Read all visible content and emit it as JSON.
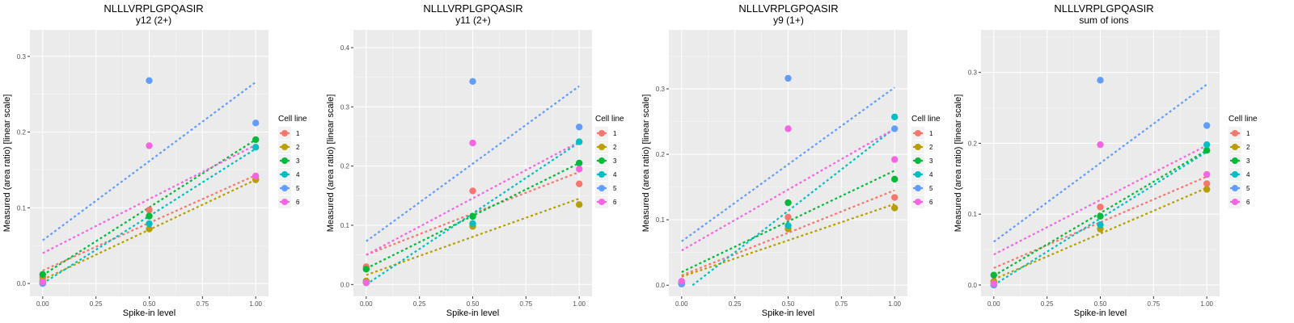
{
  "chart_data": [
    {
      "type": "scatter",
      "title": "NLLLVRPLGPQASIR",
      "subtitle": "y12 (2+)",
      "xlabel": "Spike-in level",
      "ylabel": "Measured (area ratio) [linear scale]",
      "xlim": [
        -0.06,
        1.06
      ],
      "ylim": [
        -0.017,
        0.335
      ],
      "xticks": [
        0.0,
        0.25,
        0.5,
        0.75,
        1.0
      ],
      "xtick_labels": [
        "0.00",
        "0.25",
        "0.50",
        "0.75",
        "1.00"
      ],
      "yticks": [
        0.0,
        0.1,
        0.2,
        0.3
      ],
      "ytick_labels": [
        "0.0",
        "0.1",
        "0.2",
        "0.3"
      ],
      "grid": true,
      "legend": {
        "title": "Cell line",
        "placement": "right"
      },
      "series": [
        {
          "name": "1",
          "x": [
            0,
            0.5,
            1
          ],
          "y": [
            0.008,
            0.097,
            0.138
          ],
          "fit": [
            0.017,
            0.143
          ]
        },
        {
          "name": "2",
          "x": [
            0,
            0.5,
            1
          ],
          "y": [
            0.004,
            0.072,
            0.137
          ],
          "fit": [
            0.005,
            0.137
          ]
        },
        {
          "name": "3",
          "x": [
            0,
            0.5,
            1
          ],
          "y": [
            0.012,
            0.089,
            0.19
          ],
          "fit": [
            0.011,
            0.19
          ]
        },
        {
          "name": "4",
          "x": [
            0,
            0.5,
            1
          ],
          "y": [
            0.0,
            0.079,
            0.18
          ],
          "fit": [
            0.0,
            0.178
          ]
        },
        {
          "name": "5",
          "x": [
            0,
            0.5,
            1
          ],
          "y": [
            0.0,
            0.268,
            0.212
          ],
          "fit": [
            0.057,
            0.266
          ]
        },
        {
          "name": "6",
          "x": [
            0,
            0.5,
            1
          ],
          "y": [
            0.002,
            0.182,
            0.142
          ],
          "fit": [
            0.04,
            0.183
          ]
        }
      ]
    },
    {
      "type": "scatter",
      "title": "NLLLVRPLGPQASIR",
      "subtitle": "y11 (2+)",
      "xlabel": "Spike-in level",
      "ylabel": "Measured (area ratio) [linear scale]",
      "xlim": [
        -0.06,
        1.06
      ],
      "ylim": [
        -0.02,
        0.43
      ],
      "xticks": [
        0.0,
        0.25,
        0.5,
        0.75,
        1.0
      ],
      "xtick_labels": [
        "0.00",
        "0.25",
        "0.50",
        "0.75",
        "1.00"
      ],
      "yticks": [
        0.0,
        0.1,
        0.2,
        0.3,
        0.4
      ],
      "ytick_labels": [
        "0.0",
        "0.1",
        "0.2",
        "0.3",
        "0.4"
      ],
      "grid": true,
      "legend": {
        "title": "Cell line",
        "placement": "right"
      },
      "series": [
        {
          "name": "1",
          "x": [
            0,
            0.5,
            1
          ],
          "y": [
            0.03,
            0.158,
            0.17
          ],
          "fit": [
            0.05,
            0.19
          ]
        },
        {
          "name": "2",
          "x": [
            0,
            0.5,
            1
          ],
          "y": [
            0.006,
            0.098,
            0.135
          ],
          "fit": [
            0.016,
            0.145
          ]
        },
        {
          "name": "3",
          "x": [
            0,
            0.5,
            1
          ],
          "y": [
            0.026,
            0.115,
            0.205
          ],
          "fit": [
            0.027,
            0.205
          ]
        },
        {
          "name": "4",
          "x": [
            0,
            0.5,
            1
          ],
          "y": [
            0.003,
            0.103,
            0.241
          ],
          "fit": [
            0.0,
            0.24
          ]
        },
        {
          "name": "5",
          "x": [
            0,
            0.5,
            1
          ],
          "y": [
            0.003,
            0.343,
            0.266
          ],
          "fit": [
            0.073,
            0.335
          ]
        },
        {
          "name": "6",
          "x": [
            0,
            0.5,
            1
          ],
          "y": [
            0.003,
            0.239,
            0.195
          ],
          "fit": [
            0.05,
            0.241
          ]
        }
      ]
    },
    {
      "type": "scatter",
      "title": "NLLLVRPLGPQASIR",
      "subtitle": "y9 (1+)",
      "xlabel": "Spike-in level",
      "ylabel": "Measured (area ratio) [linear scale]",
      "xlim": [
        -0.06,
        1.06
      ],
      "ylim": [
        -0.017,
        0.39
      ],
      "xticks": [
        0.0,
        0.25,
        0.5,
        0.75,
        1.0
      ],
      "xtick_labels": [
        "0.00",
        "0.25",
        "0.50",
        "0.75",
        "1.00"
      ],
      "yticks": [
        0.0,
        0.1,
        0.2,
        0.3
      ],
      "ytick_labels": [
        "0.0",
        "0.1",
        "0.2",
        "0.3"
      ],
      "grid": true,
      "legend": {
        "title": "Cell line",
        "placement": "right"
      },
      "series": [
        {
          "name": "1",
          "x": [
            0,
            0.5,
            1
          ],
          "y": [
            0.004,
            0.104,
            0.134
          ],
          "fit": [
            0.015,
            0.145
          ]
        },
        {
          "name": "2",
          "x": [
            0,
            0.5,
            1
          ],
          "y": [
            0.003,
            0.086,
            0.118
          ],
          "fit": [
            0.013,
            0.124
          ]
        },
        {
          "name": "3",
          "x": [
            0,
            0.5,
            1
          ],
          "y": [
            0.003,
            0.126,
            0.162
          ],
          "fit": [
            0.02,
            0.175
          ]
        },
        {
          "name": "4",
          "x": [
            0,
            0.5,
            1
          ],
          "y": [
            0.002,
            0.091,
            0.257
          ],
          "fit": [
            -0.013,
            0.24
          ]
        },
        {
          "name": "5",
          "x": [
            0,
            0.5,
            1
          ],
          "y": [
            0.002,
            0.316,
            0.239
          ],
          "fit": [
            0.067,
            0.302
          ]
        },
        {
          "name": "6",
          "x": [
            0,
            0.5,
            1
          ],
          "y": [
            0.006,
            0.239,
            0.192
          ],
          "fit": [
            0.053,
            0.239
          ]
        }
      ]
    },
    {
      "type": "scatter",
      "title": "NLLLVRPLGPQASIR",
      "subtitle": "sum of ions",
      "xlabel": "Spike-in level",
      "ylabel": "Measured (area ratio) [linear scale]",
      "xlim": [
        -0.06,
        1.06
      ],
      "ylim": [
        -0.016,
        0.36
      ],
      "xticks": [
        0.0,
        0.25,
        0.5,
        0.75,
        1.0
      ],
      "xtick_labels": [
        "0.00",
        "0.25",
        "0.50",
        "0.75",
        "1.00"
      ],
      "yticks": [
        0.0,
        0.1,
        0.2,
        0.3
      ],
      "ytick_labels": [
        "0.0",
        "0.1",
        "0.2",
        "0.3"
      ],
      "grid": true,
      "legend": {
        "title": "Cell line",
        "placement": "right"
      },
      "series": [
        {
          "name": "1",
          "x": [
            0,
            0.5,
            1
          ],
          "y": [
            0.005,
            0.11,
            0.143
          ],
          "fit": [
            0.024,
            0.153
          ]
        },
        {
          "name": "2",
          "x": [
            0,
            0.5,
            1
          ],
          "y": [
            0.005,
            0.079,
            0.135
          ],
          "fit": [
            0.008,
            0.137
          ]
        },
        {
          "name": "3",
          "x": [
            0,
            0.5,
            1
          ],
          "y": [
            0.014,
            0.097,
            0.19
          ],
          "fit": [
            0.013,
            0.19
          ]
        },
        {
          "name": "4",
          "x": [
            0,
            0.5,
            1
          ],
          "y": [
            0.0,
            0.085,
            0.198
          ],
          "fit": [
            0.0,
            0.188
          ]
        },
        {
          "name": "5",
          "x": [
            0,
            0.5,
            1
          ],
          "y": [
            0.0,
            0.289,
            0.225
          ],
          "fit": [
            0.061,
            0.283
          ]
        },
        {
          "name": "6",
          "x": [
            0,
            0.5,
            1
          ],
          "y": [
            0.002,
            0.198,
            0.156
          ],
          "fit": [
            0.043,
            0.197
          ]
        }
      ]
    }
  ],
  "colors": {
    "1": "#F8766D",
    "2": "#B79F00",
    "3": "#00BA38",
    "4": "#00BFC4",
    "5": "#619CFF",
    "6": "#F564E3",
    "panel_bg": "#EBEBEB",
    "grid": "#FFFFFF",
    "axis_text": "#4D4D4D"
  }
}
